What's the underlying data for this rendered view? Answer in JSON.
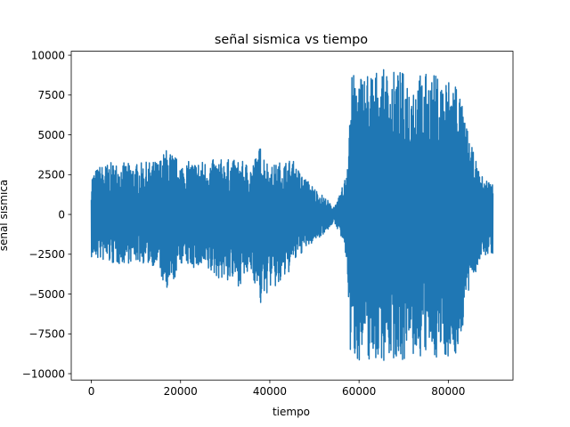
{
  "chart_data": {
    "type": "line",
    "title": "señal sismica vs tiempo",
    "xlabel": "tiempo",
    "ylabel": "señal sismica",
    "xlim": [
      -4500,
      94500
    ],
    "ylim": [
      -10400,
      10250
    ],
    "grid": false,
    "x_ticks": [
      0,
      20000,
      40000,
      60000,
      80000
    ],
    "x_tick_labels": [
      "0",
      "20000",
      "40000",
      "60000",
      "80000"
    ],
    "y_ticks": [
      -10000,
      -7500,
      -5000,
      -2500,
      0,
      2500,
      5000,
      7500,
      10000
    ],
    "y_tick_labels": [
      "−10000",
      "−7500",
      "−5000",
      "−2500",
      "0",
      "2500",
      "5000",
      "7500",
      "10000"
    ],
    "series": [
      {
        "color": "#1f77b4",
        "envelope": {
          "x": [
            0,
            2000,
            5000,
            10000,
            15000,
            17000,
            20000,
            25000,
            30000,
            33000,
            36000,
            38000,
            40000,
            42000,
            45000,
            47000,
            50000,
            53000,
            54000,
            55000,
            56000,
            57000,
            57600,
            58000,
            60000,
            62000,
            65000,
            70000,
            75000,
            78000,
            80000,
            82000,
            83000,
            85000,
            87000,
            88000,
            89000,
            90000
          ],
          "upper": [
            2600,
            3100,
            3300,
            3200,
            3400,
            4200,
            3300,
            3400,
            3500,
            3400,
            3200,
            4400,
            3000,
            3300,
            3500,
            2600,
            1700,
            900,
            500,
            700,
            1500,
            2500,
            5000,
            8700,
            9000,
            9200,
            9100,
            9000,
            8900,
            8800,
            8700,
            8900,
            7000,
            4500,
            2600,
            2300,
            2200,
            2000
          ],
          "lower": [
            -2800,
            -2900,
            -3200,
            -3000,
            -3300,
            -5400,
            -3100,
            -3600,
            -4200,
            -4500,
            -3700,
            -5900,
            -4600,
            -4800,
            -3300,
            -2500,
            -1700,
            -1000,
            -600,
            -800,
            -1500,
            -2800,
            -5000,
            -9000,
            -9200,
            -9300,
            -9200,
            -9200,
            -9100,
            -9000,
            -9000,
            -9100,
            -7500,
            -4500,
            -3000,
            -2800,
            -2500,
            -2500
          ]
        }
      }
    ]
  }
}
